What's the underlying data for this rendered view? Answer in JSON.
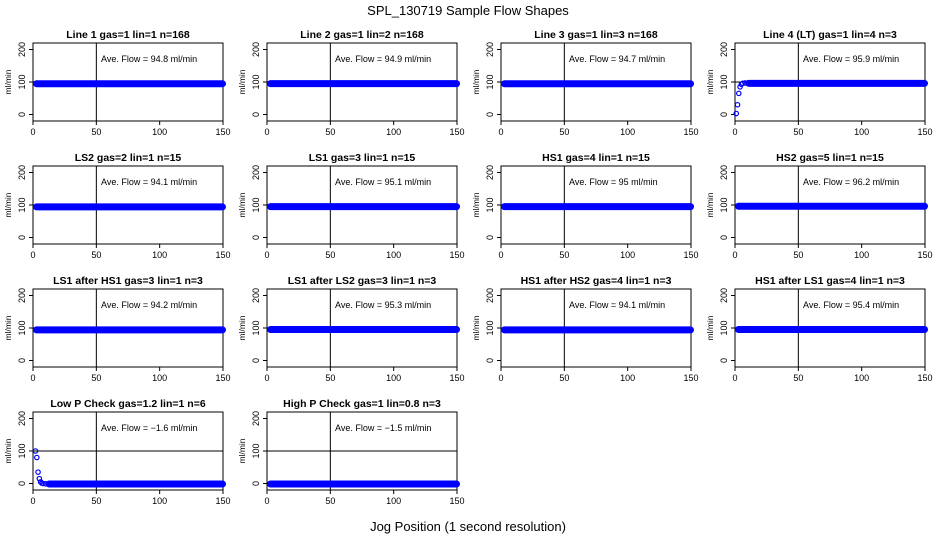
{
  "title": "SPL_130719  Sample Flow Shapes",
  "xlabel": "Jog Position (1 second resolution)",
  "ylabel": "ml/min",
  "annotation_prefix": "Ave. Flow = ",
  "annotation_unit": "  ml/min",
  "colors": {
    "points": "#0000ff",
    "lines": "#000000"
  },
  "chart_data": [
    {
      "type": "scatter",
      "title": "Line 1 gas=1 lin=1 n=168",
      "ave_flow": "94.8",
      "shape": "flat",
      "level": 94.8,
      "xlim": [
        0,
        150
      ],
      "ylim": [
        -20,
        220
      ],
      "xticks": [
        0,
        50,
        100,
        150
      ],
      "yticks": [
        0,
        100,
        200
      ],
      "hline": 100,
      "vline": 50
    },
    {
      "type": "scatter",
      "title": "Line 2 gas=1 lin=2 n=168",
      "ave_flow": "94.9",
      "shape": "flat",
      "level": 94.9,
      "xlim": [
        0,
        150
      ],
      "ylim": [
        -20,
        220
      ],
      "xticks": [
        0,
        50,
        100,
        150
      ],
      "yticks": [
        0,
        100,
        200
      ],
      "hline": 100,
      "vline": 50
    },
    {
      "type": "scatter",
      "title": "Line 3 gas=1 lin=3 n=168",
      "ave_flow": "94.7",
      "shape": "flat",
      "level": 94.7,
      "xlim": [
        0,
        150
      ],
      "ylim": [
        -20,
        220
      ],
      "xticks": [
        0,
        50,
        100,
        150
      ],
      "yticks": [
        0,
        100,
        200
      ],
      "hline": 100,
      "vline": 50
    },
    {
      "type": "scatter",
      "title": "Line 4 (LT) gas=1 lin=4 n=3",
      "ave_flow": "95.9",
      "shape": "rise",
      "level": 95.9,
      "ramp": [
        [
          1,
          3
        ],
        [
          2,
          30
        ],
        [
          3,
          65
        ],
        [
          4,
          85
        ],
        [
          5,
          93
        ],
        [
          6,
          96
        ],
        [
          8,
          97
        ]
      ],
      "xlim": [
        0,
        150
      ],
      "ylim": [
        -20,
        220
      ],
      "xticks": [
        0,
        50,
        100,
        150
      ],
      "yticks": [
        0,
        100,
        200
      ],
      "hline": 100,
      "vline": 50
    },
    {
      "type": "scatter",
      "title": "LS2 gas=2 lin=1 n=15",
      "ave_flow": "94.1",
      "shape": "flat",
      "level": 94.1,
      "xlim": [
        0,
        150
      ],
      "ylim": [
        -20,
        220
      ],
      "xticks": [
        0,
        50,
        100,
        150
      ],
      "yticks": [
        0,
        100,
        200
      ],
      "hline": 100,
      "vline": 50
    },
    {
      "type": "scatter",
      "title": "LS1 gas=3 lin=1 n=15",
      "ave_flow": "95.1",
      "shape": "flat",
      "level": 95.1,
      "xlim": [
        0,
        150
      ],
      "ylim": [
        -20,
        220
      ],
      "xticks": [
        0,
        50,
        100,
        150
      ],
      "yticks": [
        0,
        100,
        200
      ],
      "hline": 100,
      "vline": 50
    },
    {
      "type": "scatter",
      "title": "HS1 gas=4 lin=1 n=15",
      "ave_flow": "95",
      "shape": "flat",
      "level": 95,
      "xlim": [
        0,
        150
      ],
      "ylim": [
        -20,
        220
      ],
      "xticks": [
        0,
        50,
        100,
        150
      ],
      "yticks": [
        0,
        100,
        200
      ],
      "hline": 100,
      "vline": 50
    },
    {
      "type": "scatter",
      "title": "HS2 gas=5 lin=1 n=15",
      "ave_flow": "96.2",
      "shape": "flat",
      "level": 96.2,
      "xlim": [
        0,
        150
      ],
      "ylim": [
        -20,
        220
      ],
      "xticks": [
        0,
        50,
        100,
        150
      ],
      "yticks": [
        0,
        100,
        200
      ],
      "hline": 100,
      "vline": 50
    },
    {
      "type": "scatter",
      "title": "LS1 after HS1 gas=3 lin=1 n=3",
      "ave_flow": "94.2",
      "shape": "flat",
      "level": 94.2,
      "xlim": [
        0,
        150
      ],
      "ylim": [
        -20,
        220
      ],
      "xticks": [
        0,
        50,
        100,
        150
      ],
      "yticks": [
        0,
        100,
        200
      ],
      "hline": 100,
      "vline": 50
    },
    {
      "type": "scatter",
      "title": "LS1 after LS2 gas=3 lin=1 n=3",
      "ave_flow": "95.3",
      "shape": "flat",
      "level": 95.3,
      "xlim": [
        0,
        150
      ],
      "ylim": [
        -20,
        220
      ],
      "xticks": [
        0,
        50,
        100,
        150
      ],
      "yticks": [
        0,
        100,
        200
      ],
      "hline": 100,
      "vline": 50
    },
    {
      "type": "scatter",
      "title": "HS1 after HS2 gas=4 lin=1 n=3",
      "ave_flow": "94.1",
      "shape": "flat",
      "level": 94.1,
      "xlim": [
        0,
        150
      ],
      "ylim": [
        -20,
        220
      ],
      "xticks": [
        0,
        50,
        100,
        150
      ],
      "yticks": [
        0,
        100,
        200
      ],
      "hline": 100,
      "vline": 50
    },
    {
      "type": "scatter",
      "title": "HS1 after LS1 gas=4 lin=1 n=3",
      "ave_flow": "95.4",
      "shape": "flat",
      "level": 95.4,
      "xlim": [
        0,
        150
      ],
      "ylim": [
        -20,
        220
      ],
      "xticks": [
        0,
        50,
        100,
        150
      ],
      "yticks": [
        0,
        100,
        200
      ],
      "hline": 100,
      "vline": 50
    },
    {
      "type": "scatter",
      "title": "Low P Check gas=1.2 lin=1 n=6",
      "ave_flow": "−1.6",
      "shape": "decay",
      "level": -1.6,
      "ramp": [
        [
          2,
          100
        ],
        [
          3,
          80
        ],
        [
          4,
          35
        ],
        [
          5,
          15
        ],
        [
          6,
          5
        ],
        [
          7,
          1
        ],
        [
          8,
          0
        ],
        [
          10,
          -1
        ]
      ],
      "xlim": [
        0,
        150
      ],
      "ylim": [
        -20,
        220
      ],
      "xticks": [
        0,
        50,
        100,
        150
      ],
      "yticks": [
        0,
        100,
        200
      ],
      "hline": 100,
      "vline": 50
    },
    {
      "type": "scatter",
      "title": "High P Check gas=1 lin=0.8 n=3",
      "ave_flow": "−1.5",
      "shape": "flat",
      "level": -1.5,
      "xlim": [
        0,
        150
      ],
      "ylim": [
        -20,
        220
      ],
      "xticks": [
        0,
        50,
        100,
        150
      ],
      "yticks": [
        0,
        100,
        200
      ],
      "hline": 100,
      "vline": 50
    }
  ]
}
